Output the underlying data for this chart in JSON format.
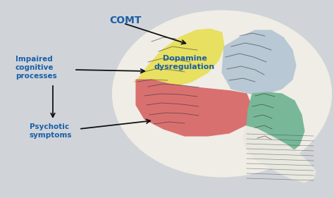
{
  "bg_color": "#d0d4d8",
  "brain_outline_color": "#333333",
  "label_color": "#1a5fa8",
  "label_comt": "COMT",
  "label_dopamine": "Dopamine\ndysregulation",
  "label_impaired": "Impaired\ncognitive\nprocesses",
  "label_psychotic": "Psychotic\nsymptoms",
  "region_yellow": "#e8e060",
  "region_gray": "#b8c8d4",
  "region_red": "#d97070",
  "region_green": "#78b898",
  "region_white": "#e8e8e0",
  "arrow_color": "#111111"
}
